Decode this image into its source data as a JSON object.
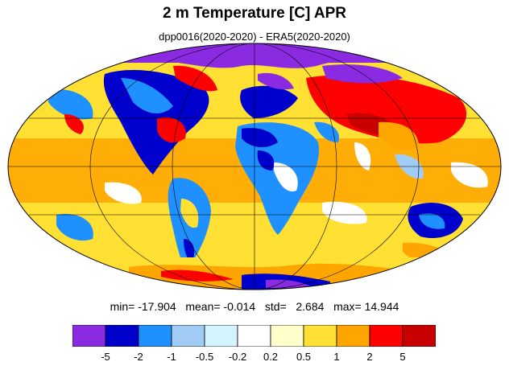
{
  "header": {
    "title": "2 m Temperature [C] APR",
    "subtitle": "dpp0016(2020-2020) - ERA5(2020-2020)"
  },
  "stats": {
    "min_label": "min=",
    "min": "-17.904",
    "mean_label": "mean=",
    "mean": "-0.014",
    "std_label": "std=",
    "std": "2.684",
    "max_label": "max=",
    "max": "14.944"
  },
  "colorbar": {
    "colors": [
      "#8a2be2",
      "#0000cd",
      "#1e90ff",
      "#a0ccf5",
      "#d4f4ff",
      "#ffffff",
      "#ffffcc",
      "#ffe033",
      "#ffa500",
      "#ff0000",
      "#c80000"
    ],
    "tick_labels": [
      "-5",
      "-2",
      "-1",
      "-0.5",
      "-0.2",
      "0.2",
      "0.5",
      "1",
      "2",
      "5"
    ]
  },
  "map": {
    "projection": "Mollweide",
    "grid": true,
    "coastlines": true
  }
}
